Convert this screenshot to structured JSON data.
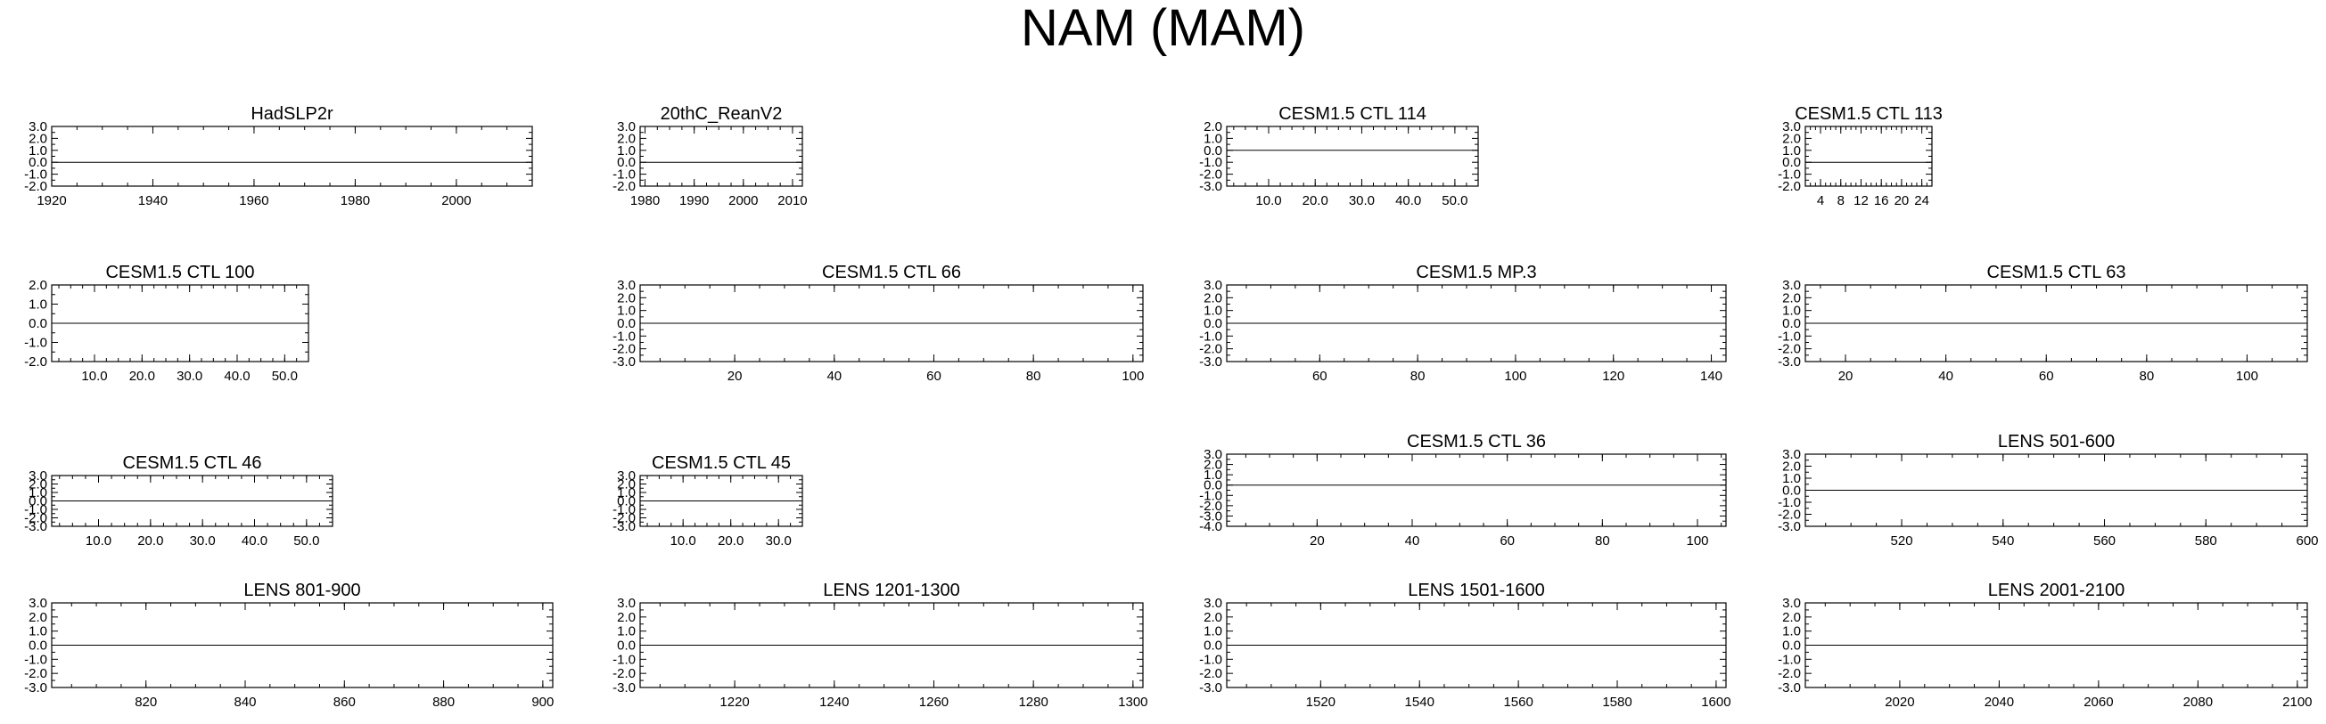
{
  "title": "NAM (MAM)",
  "colors": {
    "positive": "#ff8c00",
    "negative": "#1e3cff",
    "axis": "#000000"
  },
  "chart_data": [
    {
      "type": "area",
      "title": "HadSLP2r",
      "xlim": [
        1920,
        2015
      ],
      "xticks": [
        1920,
        1940,
        1960,
        1980,
        2000
      ],
      "xtick_labels": [
        "1920",
        "1940",
        "1960",
        "1980",
        "2000"
      ],
      "ylim": [
        -2,
        3
      ],
      "yticks": [
        -2,
        -1,
        0,
        1,
        2,
        3
      ],
      "ytick_labels": [
        "-2.0",
        "-1.0",
        "0.0",
        "1.0",
        "2.0",
        "3.0"
      ],
      "series": [
        {
          "values": []
        }
      ]
    },
    {
      "type": "area",
      "title": "20thC_ReanV2",
      "xlim": [
        1979,
        2012
      ],
      "xticks": [
        1980,
        1990,
        2000,
        2010
      ],
      "xtick_labels": [
        "1980",
        "1990",
        "2000",
        "2010"
      ],
      "ylim": [
        -2,
        3
      ],
      "yticks": [
        -2,
        -1,
        0,
        1,
        2,
        3
      ],
      "ytick_labels": [
        "-2.0",
        "-1.0",
        "0.0",
        "1.0",
        "2.0",
        "3.0"
      ],
      "series": [
        {
          "values": []
        }
      ]
    },
    {
      "type": "area",
      "title": "CESM1.5 CTL 114",
      "xlim": [
        1,
        55
      ],
      "xticks": [
        10,
        20,
        30,
        40,
        50
      ],
      "xtick_labels": [
        "10.0",
        "20.0",
        "30.0",
        "40.0",
        "50.0"
      ],
      "ylim": [
        -3,
        2
      ],
      "yticks": [
        -3,
        -2,
        -1,
        0,
        1,
        2
      ],
      "ytick_labels": [
        "-3.0",
        "-2.0",
        "-1.0",
        "0.0",
        "1.0",
        "2.0"
      ],
      "series": [
        {
          "values": []
        }
      ]
    },
    {
      "type": "area",
      "title": "CESM1.5 CTL 113",
      "xlim": [
        1,
        26
      ],
      "xticks": [
        4,
        8,
        12,
        16,
        20,
        24
      ],
      "xtick_labels": [
        "4",
        "8",
        "12",
        "16",
        "20",
        "24"
      ],
      "ylim": [
        -2,
        3
      ],
      "yticks": [
        -2,
        -1,
        0,
        1,
        2,
        3
      ],
      "ytick_labels": [
        "-2.0",
        "-1.0",
        "0.0",
        "1.0",
        "2.0",
        "3.0"
      ],
      "series": [
        {
          "values": []
        }
      ]
    },
    {
      "type": "area",
      "title": "CESM1.5 CTL 100",
      "xlim": [
        1,
        55
      ],
      "xticks": [
        10,
        20,
        30,
        40,
        50
      ],
      "xtick_labels": [
        "10.0",
        "20.0",
        "30.0",
        "40.0",
        "50.0"
      ],
      "ylim": [
        -2,
        2
      ],
      "yticks": [
        -2,
        -1,
        0,
        1,
        2
      ],
      "ytick_labels": [
        "-2.0",
        "-1.0",
        "0.0",
        "1.0",
        "2.0"
      ],
      "series": [
        {
          "values": []
        }
      ]
    },
    {
      "type": "area",
      "title": "CESM1.5 CTL 66",
      "xlim": [
        1,
        102
      ],
      "xticks": [
        20,
        40,
        60,
        80,
        100
      ],
      "xtick_labels": [
        "20",
        "40",
        "60",
        "80",
        "100"
      ],
      "ylim": [
        -3,
        3
      ],
      "yticks": [
        -3,
        -2,
        -1,
        0,
        1,
        2,
        3
      ],
      "ytick_labels": [
        "-3.0",
        "-2.0",
        "-1.0",
        "0.0",
        "1.0",
        "2.0",
        "3.0"
      ],
      "series": [
        {
          "values": []
        }
      ]
    },
    {
      "type": "area",
      "title": "CESM1.5 MP.3",
      "xlim": [
        41,
        143
      ],
      "xticks": [
        60,
        80,
        100,
        120,
        140
      ],
      "xtick_labels": [
        "60",
        "80",
        "100",
        "120",
        "140"
      ],
      "ylim": [
        -3,
        3
      ],
      "yticks": [
        -3,
        -2,
        -1,
        0,
        1,
        2,
        3
      ],
      "ytick_labels": [
        "-3.0",
        "-2.0",
        "-1.0",
        "0.0",
        "1.0",
        "2.0",
        "3.0"
      ],
      "series": [
        {
          "values": []
        }
      ]
    },
    {
      "type": "area",
      "title": "CESM1.5 CTL 63",
      "xlim": [
        12,
        112
      ],
      "xticks": [
        20,
        40,
        60,
        80,
        100
      ],
      "xtick_labels": [
        "20",
        "40",
        "60",
        "80",
        "100"
      ],
      "ylim": [
        -3,
        3
      ],
      "yticks": [
        -3,
        -2,
        -1,
        0,
        1,
        2,
        3
      ],
      "ytick_labels": [
        "-3.0",
        "-2.0",
        "-1.0",
        "0.0",
        "1.0",
        "2.0",
        "3.0"
      ],
      "series": [
        {
          "values": []
        }
      ]
    },
    {
      "type": "area",
      "title": "CESM1.5 CTL 46",
      "xlim": [
        1,
        55
      ],
      "xticks": [
        10,
        20,
        30,
        40,
        50
      ],
      "xtick_labels": [
        "10.0",
        "20.0",
        "30.0",
        "40.0",
        "50.0"
      ],
      "ylim": [
        -3,
        3
      ],
      "yticks": [
        -3,
        -2,
        -1,
        0,
        1,
        2,
        3
      ],
      "ytick_labels": [
        "-3.0",
        "-2.0",
        "-1.0",
        "0.0",
        "1.0",
        "2.0",
        "3.0"
      ],
      "series": [
        {
          "values": []
        }
      ]
    },
    {
      "type": "area",
      "title": "CESM1.5 CTL 45",
      "xlim": [
        1,
        35
      ],
      "xticks": [
        10,
        20,
        30
      ],
      "xtick_labels": [
        "10.0",
        "20.0",
        "30.0"
      ],
      "ylim": [
        -3,
        3
      ],
      "yticks": [
        -3,
        -2,
        -1,
        0,
        1,
        2,
        3
      ],
      "ytick_labels": [
        "-3.0",
        "-2.0",
        "-1.0",
        "0.0",
        "1.0",
        "2.0",
        "3.0"
      ],
      "series": [
        {
          "values": []
        }
      ]
    },
    {
      "type": "area",
      "title": "CESM1.5 CTL 36",
      "xlim": [
        1,
        106
      ],
      "xticks": [
        20,
        40,
        60,
        80,
        100
      ],
      "xtick_labels": [
        "20",
        "40",
        "60",
        "80",
        "100"
      ],
      "ylim": [
        -4,
        3
      ],
      "yticks": [
        -4,
        -3,
        -2,
        -1,
        0,
        1,
        2,
        3
      ],
      "ytick_labels": [
        "-4.0",
        "-3.0",
        "-2.0",
        "-1.0",
        "0.0",
        "1.0",
        "2.0",
        "3.0"
      ],
      "series": [
        {
          "values": []
        }
      ]
    },
    {
      "type": "area",
      "title": "LENS 501-600",
      "xlim": [
        501,
        600
      ],
      "xticks": [
        520,
        540,
        560,
        580,
        600
      ],
      "xtick_labels": [
        "520",
        "540",
        "560",
        "580",
        "600"
      ],
      "ylim": [
        -3,
        3
      ],
      "yticks": [
        -3,
        -2,
        -1,
        0,
        1,
        2,
        3
      ],
      "ytick_labels": [
        "-3.0",
        "-2.0",
        "-1.0",
        "0.0",
        "1.0",
        "2.0",
        "3.0"
      ],
      "series": [
        {
          "values": []
        }
      ]
    },
    {
      "type": "area",
      "title": "LENS 801-900",
      "xlim": [
        801,
        902
      ],
      "xticks": [
        820,
        840,
        860,
        880,
        900
      ],
      "xtick_labels": [
        "820",
        "840",
        "860",
        "880",
        "900"
      ],
      "ylim": [
        -3,
        3
      ],
      "yticks": [
        -3,
        -2,
        -1,
        0,
        1,
        2,
        3
      ],
      "ytick_labels": [
        "-3.0",
        "-2.0",
        "-1.0",
        "0.0",
        "1.0",
        "2.0",
        "3.0"
      ],
      "series": [
        {
          "values": []
        }
      ]
    },
    {
      "type": "area",
      "title": "LENS 1201-1300",
      "xlim": [
        1201,
        1302
      ],
      "xticks": [
        1220,
        1240,
        1260,
        1280,
        1300
      ],
      "xtick_labels": [
        "1220",
        "1240",
        "1260",
        "1280",
        "1300"
      ],
      "ylim": [
        -3,
        3
      ],
      "yticks": [
        -3,
        -2,
        -1,
        0,
        1,
        2,
        3
      ],
      "ytick_labels": [
        "-3.0",
        "-2.0",
        "-1.0",
        "0.0",
        "1.0",
        "2.0",
        "3.0"
      ],
      "series": [
        {
          "values": []
        }
      ]
    },
    {
      "type": "area",
      "title": "LENS 1501-1600",
      "xlim": [
        1501,
        1602
      ],
      "xticks": [
        1520,
        1540,
        1560,
        1580,
        1600
      ],
      "xtick_labels": [
        "1520",
        "1540",
        "1560",
        "1580",
        "1600"
      ],
      "ylim": [
        -3,
        3
      ],
      "yticks": [
        -3,
        -2,
        -1,
        0,
        1,
        2,
        3
      ],
      "ytick_labels": [
        "-3.0",
        "-2.0",
        "-1.0",
        "0.0",
        "1.0",
        "2.0",
        "3.0"
      ],
      "series": [
        {
          "values": []
        }
      ]
    },
    {
      "type": "area",
      "title": "LENS 2001-2100",
      "xlim": [
        2001,
        2102
      ],
      "xticks": [
        2020,
        2040,
        2060,
        2080,
        2100
      ],
      "xtick_labels": [
        "2020",
        "2040",
        "2060",
        "2080",
        "2100"
      ],
      "ylim": [
        -3,
        3
      ],
      "yticks": [
        -3,
        -2,
        -1,
        0,
        1,
        2,
        3
      ],
      "ytick_labels": [
        "-3.0",
        "-2.0",
        "-1.0",
        "0.0",
        "1.0",
        "2.0",
        "3.0"
      ],
      "series": [
        {
          "values": []
        }
      ]
    }
  ]
}
